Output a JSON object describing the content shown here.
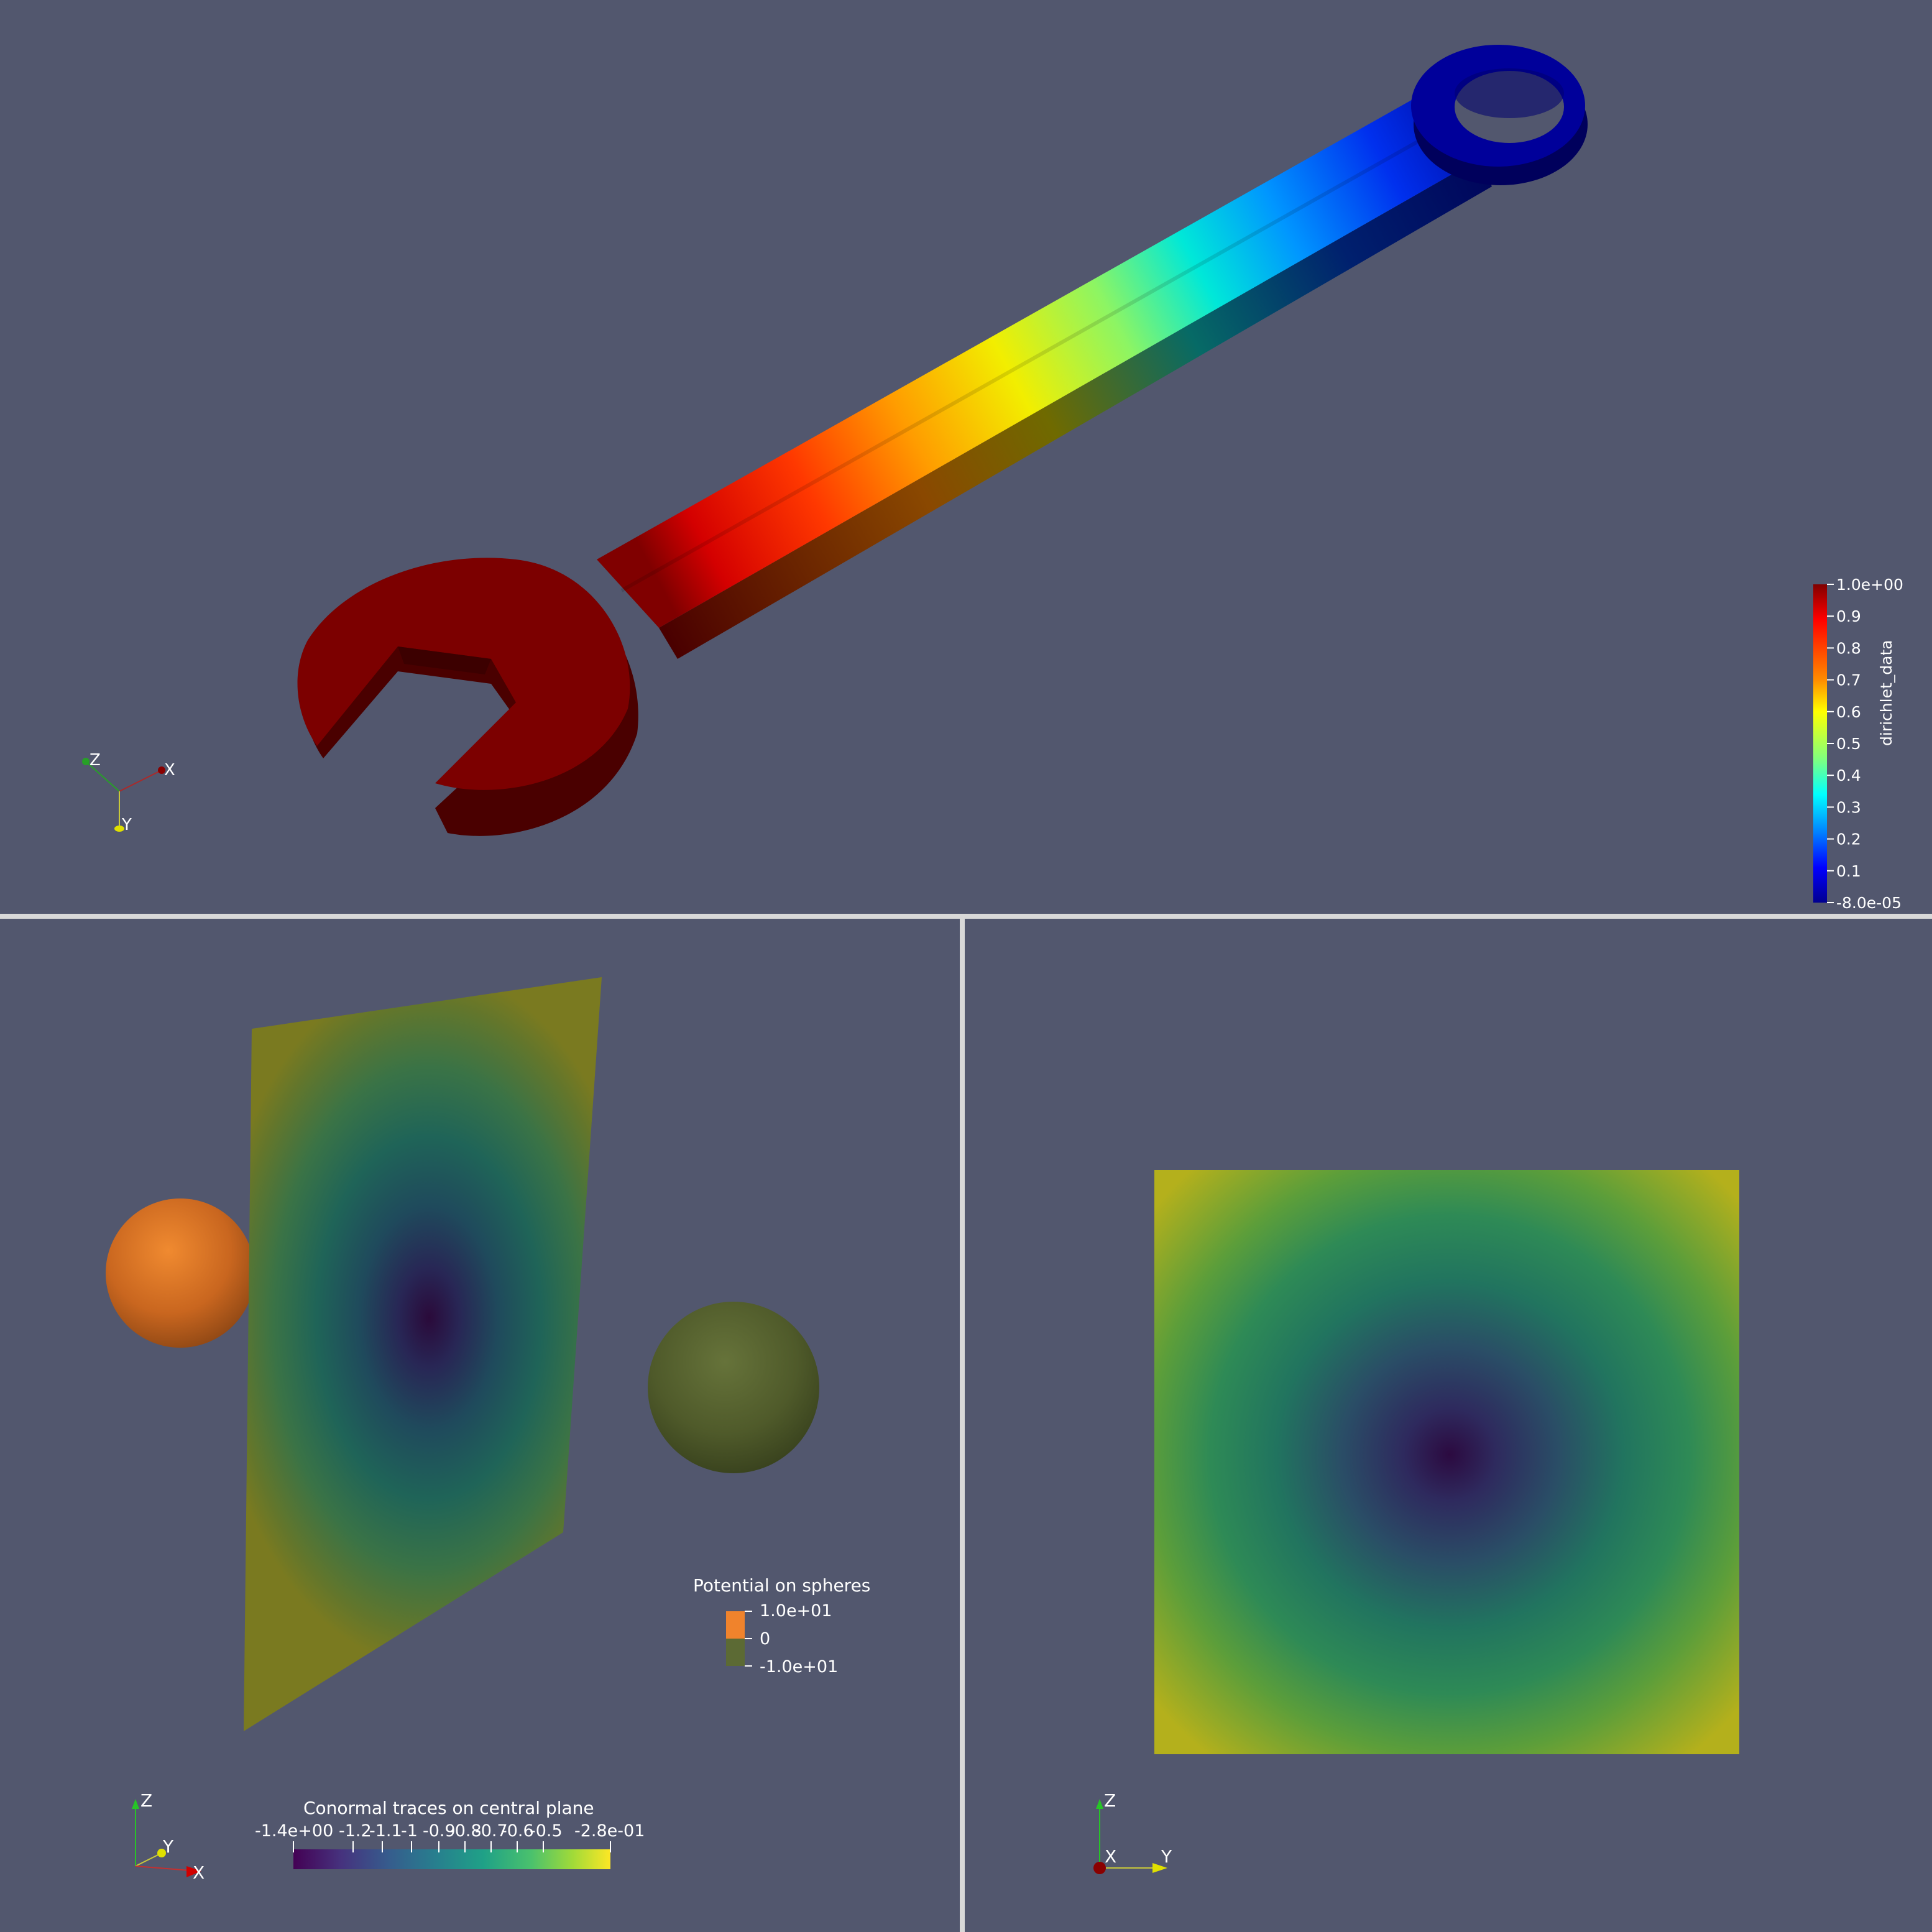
{
  "top_view": {
    "colorbar": {
      "title": "dirichlet_data",
      "tick_labels": [
        "1.0e+00",
        "0.9",
        "0.8",
        "0.7",
        "0.6",
        "0.5",
        "0.4",
        "0.3",
        "0.2",
        "0.1",
        "-8.0e-05"
      ],
      "colormap": "jet"
    },
    "axes": {
      "x": "X",
      "y": "Y",
      "z": "Z"
    }
  },
  "bottom_left_view": {
    "spheres_legend": {
      "title": "Potential on spheres",
      "labels": [
        "1.0e+01",
        "0",
        "-1.0e+01"
      ],
      "colors": {
        "high": "#f0832c",
        "low": "#5c6a34"
      }
    },
    "plane_colorbar": {
      "title": "Conormal traces on central plane",
      "tick_labels": [
        "-1.4e+00",
        "-1.2",
        "-1.1",
        "-1",
        "-0.9",
        "-0.8",
        "-0.7",
        "-0.6",
        "-0.5",
        "-2.8e-01"
      ],
      "colormap": "viridis"
    },
    "axes": {
      "x": "X",
      "y": "Y",
      "z": "Z"
    }
  },
  "bottom_right_view": {
    "axes": {
      "x": "X",
      "y": "Y",
      "z": "Z"
    }
  },
  "colors": {
    "background": "#52576e",
    "divider": "#d8d8d8"
  }
}
